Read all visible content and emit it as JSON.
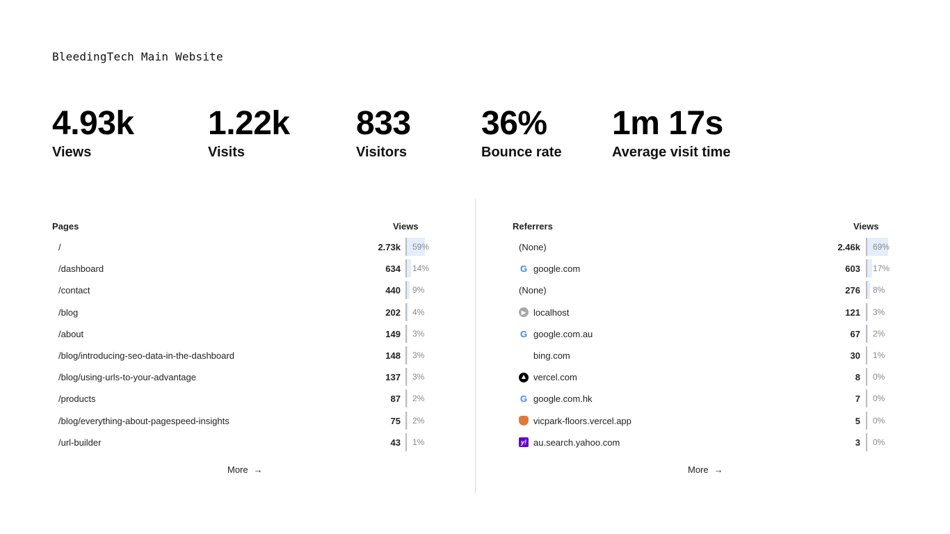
{
  "site_title": "BleedingTech Main Website",
  "metrics": [
    {
      "value": "4.93k",
      "label": "Views"
    },
    {
      "value": "1.22k",
      "label": "Visits"
    },
    {
      "value": "833",
      "label": "Visitors"
    },
    {
      "value": "36%",
      "label": "Bounce rate"
    },
    {
      "value": "1m 17s",
      "label": "Average visit time"
    }
  ],
  "pages": {
    "title": "Pages",
    "column": "Views",
    "more_label": "More",
    "rows": [
      {
        "label": "/",
        "value": "2.73k",
        "pct": "59%",
        "fraction": 0.59
      },
      {
        "label": "/dashboard",
        "value": "634",
        "pct": "14%",
        "fraction": 0.14
      },
      {
        "label": "/contact",
        "value": "440",
        "pct": "9%",
        "fraction": 0.09
      },
      {
        "label": "/blog",
        "value": "202",
        "pct": "4%",
        "fraction": 0.04
      },
      {
        "label": "/about",
        "value": "149",
        "pct": "3%",
        "fraction": 0.03
      },
      {
        "label": "/blog/introducing-seo-data-in-the-dashboard",
        "value": "148",
        "pct": "3%",
        "fraction": 0.03
      },
      {
        "label": "/blog/using-urls-to-your-advantage",
        "value": "137",
        "pct": "3%",
        "fraction": 0.03
      },
      {
        "label": "/products",
        "value": "87",
        "pct": "2%",
        "fraction": 0.02
      },
      {
        "label": "/blog/everything-about-pagespeed-insights",
        "value": "75",
        "pct": "2%",
        "fraction": 0.02
      },
      {
        "label": "/url-builder",
        "value": "43",
        "pct": "1%",
        "fraction": 0.01
      }
    ]
  },
  "referrers": {
    "title": "Referrers",
    "column": "Views",
    "more_label": "More",
    "rows": [
      {
        "label": "(None)",
        "icon": "none",
        "value": "2.46k",
        "pct": "69%",
        "fraction": 0.69
      },
      {
        "label": "google.com",
        "icon": "google-icon",
        "value": "603",
        "pct": "17%",
        "fraction": 0.17
      },
      {
        "label": "(None)",
        "icon": "none",
        "value": "276",
        "pct": "8%",
        "fraction": 0.08
      },
      {
        "label": "localhost",
        "icon": "localhost-icon",
        "value": "121",
        "pct": "3%",
        "fraction": 0.03
      },
      {
        "label": "google.com.au",
        "icon": "google-icon",
        "value": "67",
        "pct": "2%",
        "fraction": 0.02
      },
      {
        "label": "bing.com",
        "icon": "blank-icon",
        "value": "30",
        "pct": "1%",
        "fraction": 0.01
      },
      {
        "label": "vercel.com",
        "icon": "vercel-icon",
        "value": "8",
        "pct": "0%",
        "fraction": 0.0
      },
      {
        "label": "google.com.hk",
        "icon": "google-icon",
        "value": "7",
        "pct": "0%",
        "fraction": 0.0
      },
      {
        "label": "vicpark-floors.vercel.app",
        "icon": "shield-icon",
        "value": "5",
        "pct": "0%",
        "fraction": 0.0
      },
      {
        "label": "au.search.yahoo.com",
        "icon": "yahoo-icon",
        "value": "3",
        "pct": "0%",
        "fraction": 0.0
      }
    ]
  },
  "colors": {
    "bar_fill": "#e4edfb",
    "bar_border": "#bcbcbc",
    "pct_text": "#888888"
  }
}
